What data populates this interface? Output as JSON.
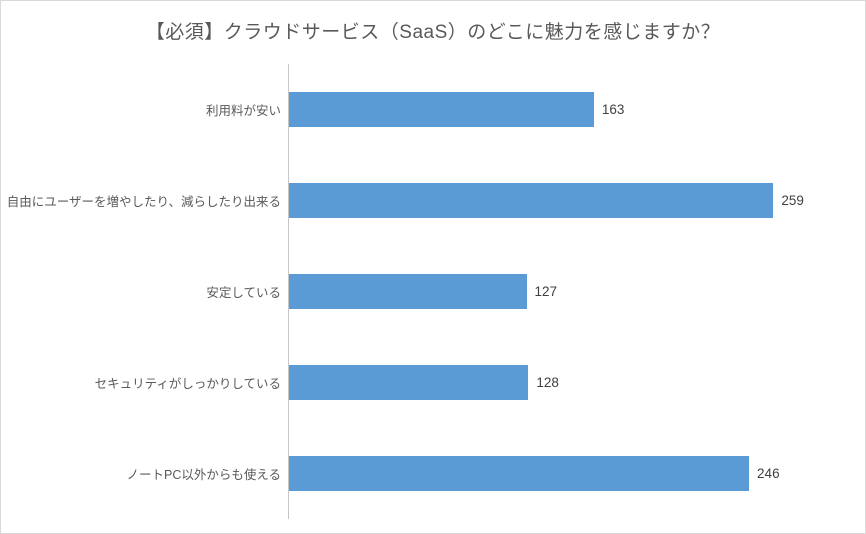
{
  "chart_data": {
    "type": "bar",
    "orientation": "horizontal",
    "title": "【必須】クラウドサービス（SaaS）のどこに魅力を感じますか？",
    "categories": [
      "利用料が安い",
      "自由にユーザーを増やしたり、減らしたり出来る",
      "安定している",
      "セキュリティがしっかりしている",
      "ノートPC以外からも使える"
    ],
    "values": [
      163,
      259,
      127,
      128,
      246
    ],
    "category_order": "top-to-bottom",
    "xlabel": "",
    "ylabel": "",
    "xlim": [
      0,
      308
    ],
    "grid": false,
    "legend": false,
    "data_labels": true
  },
  "colors": {
    "bar": "#5B9BD5",
    "title_text": "#595959",
    "label_text": "#595959",
    "value_text": "#404040",
    "axis_line": "#C6C6C6",
    "frame_border": "#D9D9D9",
    "background": "#FFFFFF"
  }
}
